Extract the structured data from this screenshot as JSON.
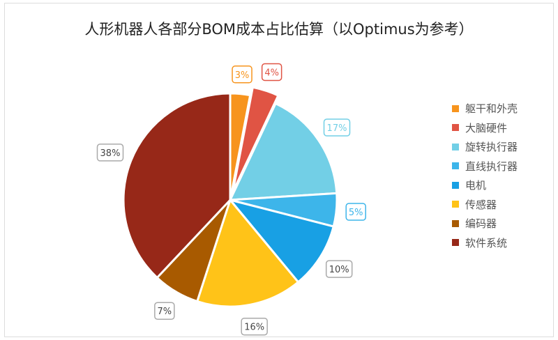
{
  "chart_data": {
    "type": "pie",
    "title": "人形机器人各部分BOM成本占比估算（以Optimus为参考）",
    "categories": [
      "躯干和外壳",
      "大脑硬件",
      "旋转执行器",
      "直线执行器",
      "电机",
      "传感器",
      "编码器",
      "软件系统"
    ],
    "values": [
      3,
      4,
      17,
      5,
      10,
      16,
      7,
      38
    ],
    "labels": [
      "3%",
      "4%",
      "17%",
      "5%",
      "10%",
      "16%",
      "7%",
      "38%"
    ],
    "colors": [
      "#F7941D",
      "#E05444",
      "#72CFE6",
      "#3DB5EA",
      "#18A0E4",
      "#FFC318",
      "#A85A00",
      "#972818"
    ],
    "exploded": [
      "大脑硬件"
    ],
    "legend": "right"
  }
}
